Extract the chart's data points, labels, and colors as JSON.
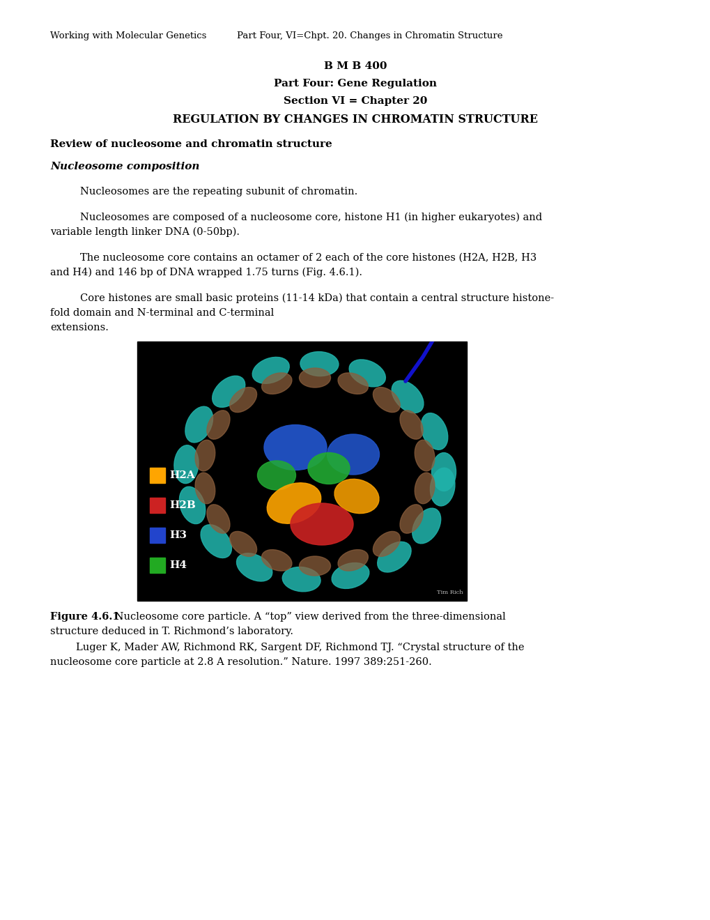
{
  "header_left": "Working with Molecular Genetics",
  "header_right": "Part Four, VI=Chpt. 20. Changes in Chromatin Structure",
  "title_line1": "B M B 400",
  "title_line2": "Part Four: Gene Regulation",
  "title_line3": "Section VI = Chapter 20",
  "title_line4": "REGULATION BY CHANGES IN CHROMATIN STRUCTURE",
  "section_heading": "Review of nucleosome and chromatin structure",
  "subsection_heading": "Nucleosome composition",
  "para1": "Nucleosomes are the repeating subunit of chromatin.",
  "para2_l1": "Nucleosomes are composed of a nucleosome core, histone H1 (in higher eukaryotes) and",
  "para2_l2": "variable length linker DNA (0-50bp).",
  "para3_l1": "The nucleosome core contains an octamer of 2 each of the core histones (H2A, H2B, H3",
  "para3_l2": "and H4) and 146 bp of DNA wrapped 1.75 turns (Fig. 4.6.1).",
  "para4_l1": "Core histones are small basic proteins (11-14 kDa) that contain a central structure histone-",
  "para4_l2": "fold domain and N-terminal and C-terminal",
  "para4_l3": "extensions.",
  "fig_label_bold": "Figure 4.6.1.",
  "fig_cap_rest": " Nucleosome core particle. A “top” view derived from the three-dimensional",
  "fig_cap_l2": "structure deduced in T. Richmond’s laboratory.",
  "ref_l1": "        Luger K, Mader AW, Richmond RK, Sargent DF, Richmond TJ. “Crystal structure of the",
  "ref_l2": "nucleosome core particle at 2.8 A resolution.” Nature. 1997 389:251-260.",
  "legend_items": [
    {
      "color": "#FFA500",
      "label": "H2A"
    },
    {
      "color": "#CC2222",
      "label": "H2B"
    },
    {
      "color": "#2244CC",
      "label": "H3"
    },
    {
      "color": "#22AA22",
      "label": "H4"
    }
  ],
  "bg_color": "#ffffff",
  "text_color": "#000000",
  "header_fontsize": 9.5,
  "title_fontsize": 11,
  "body_fontsize": 10.5,
  "section_fontsize": 11,
  "fig_fontsize": 10.5
}
